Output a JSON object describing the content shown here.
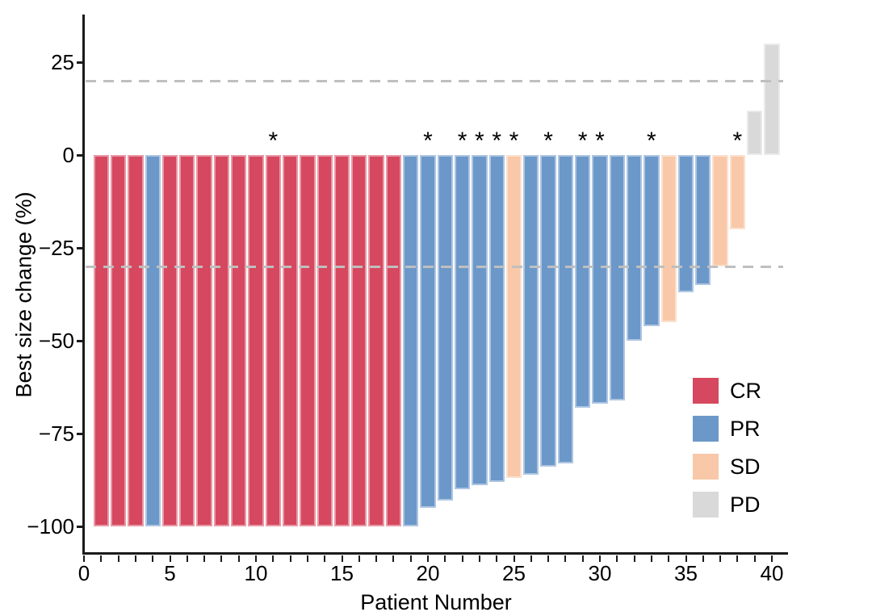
{
  "chart_data": {
    "type": "bar",
    "title": "",
    "xlabel": "Patient Number",
    "ylabel": "Best size change (%)",
    "xlim": [
      0,
      41
    ],
    "ylim": [
      -107,
      35
    ],
    "x_tick_every": 1,
    "x_ticks_labeled": [
      0,
      5,
      10,
      15,
      20,
      25,
      30,
      35,
      40
    ],
    "y_ticks": [
      25,
      0,
      -25,
      -50,
      -75,
      -100
    ],
    "y_tick_labels": [
      "25",
      "0",
      "−25",
      "−50",
      "−75",
      "−100"
    ],
    "grid": false,
    "threshold_lines": [
      20,
      -30
    ],
    "threshold_line_color": "#bfbfbf",
    "threshold_line_style": "dashed",
    "significance_marker": "*",
    "legend_position": "inside-right",
    "legend": [
      {
        "label": "CR",
        "color": "#d6485f"
      },
      {
        "label": "PR",
        "color": "#6c98c9"
      },
      {
        "label": "SD",
        "color": "#f8c8a8"
      },
      {
        "label": "PD",
        "color": "#d9d9d9"
      }
    ],
    "patients": [
      {
        "patient": 1,
        "change": -100,
        "response": "CR",
        "star": false
      },
      {
        "patient": 2,
        "change": -100,
        "response": "CR",
        "star": false
      },
      {
        "patient": 3,
        "change": -100,
        "response": "CR",
        "star": false
      },
      {
        "patient": 4,
        "change": -100,
        "response": "PR",
        "star": false
      },
      {
        "patient": 5,
        "change": -100,
        "response": "CR",
        "star": false
      },
      {
        "patient": 6,
        "change": -100,
        "response": "CR",
        "star": false
      },
      {
        "patient": 7,
        "change": -100,
        "response": "CR",
        "star": false
      },
      {
        "patient": 8,
        "change": -100,
        "response": "CR",
        "star": false
      },
      {
        "patient": 9,
        "change": -100,
        "response": "CR",
        "star": false
      },
      {
        "patient": 10,
        "change": -100,
        "response": "CR",
        "star": false
      },
      {
        "patient": 11,
        "change": -100,
        "response": "CR",
        "star": true
      },
      {
        "patient": 12,
        "change": -100,
        "response": "CR",
        "star": false
      },
      {
        "patient": 13,
        "change": -100,
        "response": "CR",
        "star": false
      },
      {
        "patient": 14,
        "change": -100,
        "response": "CR",
        "star": false
      },
      {
        "patient": 15,
        "change": -100,
        "response": "CR",
        "star": false
      },
      {
        "patient": 16,
        "change": -100,
        "response": "CR",
        "star": false
      },
      {
        "patient": 17,
        "change": -100,
        "response": "CR",
        "star": false
      },
      {
        "patient": 18,
        "change": -100,
        "response": "CR",
        "star": false
      },
      {
        "patient": 19,
        "change": -100,
        "response": "PR",
        "star": false
      },
      {
        "patient": 20,
        "change": -95,
        "response": "PR",
        "star": true
      },
      {
        "patient": 21,
        "change": -93,
        "response": "PR",
        "star": false
      },
      {
        "patient": 22,
        "change": -90,
        "response": "PR",
        "star": true
      },
      {
        "patient": 23,
        "change": -89,
        "response": "PR",
        "star": true
      },
      {
        "patient": 24,
        "change": -88,
        "response": "PR",
        "star": true
      },
      {
        "patient": 25,
        "change": -87,
        "response": "SD",
        "star": true
      },
      {
        "patient": 26,
        "change": -86,
        "response": "PR",
        "star": false
      },
      {
        "patient": 27,
        "change": -84,
        "response": "PR",
        "star": true
      },
      {
        "patient": 28,
        "change": -83,
        "response": "PR",
        "star": false
      },
      {
        "patient": 29,
        "change": -68,
        "response": "PR",
        "star": true
      },
      {
        "patient": 30,
        "change": -67,
        "response": "PR",
        "star": true
      },
      {
        "patient": 31,
        "change": -66,
        "response": "PR",
        "star": false
      },
      {
        "patient": 32,
        "change": -50,
        "response": "PR",
        "star": false
      },
      {
        "patient": 33,
        "change": -46,
        "response": "PR",
        "star": true
      },
      {
        "patient": 34,
        "change": -45,
        "response": "SD",
        "star": false
      },
      {
        "patient": 35,
        "change": -37,
        "response": "PR",
        "star": false
      },
      {
        "patient": 36,
        "change": -35,
        "response": "PR",
        "star": false
      },
      {
        "patient": 37,
        "change": -30,
        "response": "SD",
        "star": false
      },
      {
        "patient": 38,
        "change": -20,
        "response": "SD",
        "star": true
      },
      {
        "patient": 39,
        "change": 12,
        "response": "PD",
        "star": false
      },
      {
        "patient": 40,
        "change": 30,
        "response": "PD",
        "star": false
      }
    ]
  }
}
